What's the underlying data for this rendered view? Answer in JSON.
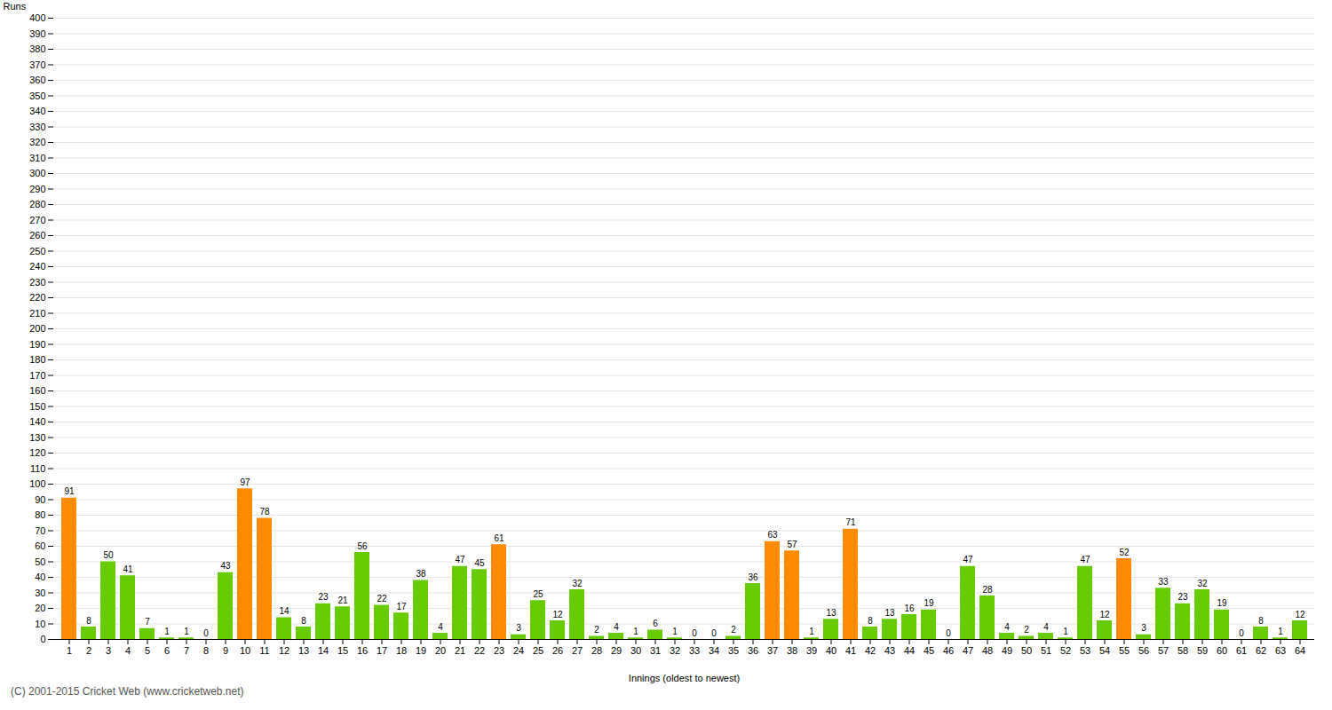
{
  "chart_data": {
    "type": "bar",
    "xlabel": "Innings (oldest to newest)",
    "ylabel": "Runs",
    "categories": [
      1,
      2,
      3,
      4,
      5,
      6,
      7,
      8,
      9,
      10,
      11,
      12,
      13,
      14,
      15,
      16,
      17,
      18,
      19,
      20,
      21,
      22,
      23,
      24,
      25,
      26,
      27,
      28,
      29,
      30,
      31,
      32,
      33,
      34,
      35,
      36,
      37,
      38,
      39,
      40,
      41,
      42,
      43,
      44,
      45,
      46,
      47,
      48,
      49,
      50,
      51,
      52,
      53,
      54,
      55,
      56,
      57,
      58,
      59,
      60,
      61,
      62,
      63,
      64
    ],
    "values": [
      91,
      8,
      50,
      41,
      7,
      1,
      1,
      0,
      43,
      97,
      78,
      14,
      8,
      23,
      21,
      56,
      22,
      17,
      38,
      4,
      47,
      45,
      61,
      3,
      25,
      12,
      32,
      2,
      4,
      1,
      6,
      1,
      0,
      0,
      2,
      36,
      63,
      57,
      1,
      13,
      71,
      8,
      13,
      16,
      19,
      0,
      47,
      28,
      4,
      2,
      4,
      1,
      47,
      12,
      52,
      3,
      33,
      23,
      32,
      19,
      0,
      8,
      1,
      12
    ],
    "colors": [
      "#ff8c00",
      "#66cc00",
      "#66cc00",
      "#66cc00",
      "#66cc00",
      "#66cc00",
      "#66cc00",
      "#66cc00",
      "#66cc00",
      "#ff8c00",
      "#ff8c00",
      "#66cc00",
      "#66cc00",
      "#66cc00",
      "#66cc00",
      "#66cc00",
      "#66cc00",
      "#66cc00",
      "#66cc00",
      "#66cc00",
      "#66cc00",
      "#66cc00",
      "#ff8c00",
      "#66cc00",
      "#66cc00",
      "#66cc00",
      "#66cc00",
      "#66cc00",
      "#66cc00",
      "#66cc00",
      "#66cc00",
      "#66cc00",
      "#66cc00",
      "#66cc00",
      "#66cc00",
      "#66cc00",
      "#ff8c00",
      "#ff8c00",
      "#66cc00",
      "#66cc00",
      "#ff8c00",
      "#66cc00",
      "#66cc00",
      "#66cc00",
      "#66cc00",
      "#66cc00",
      "#66cc00",
      "#66cc00",
      "#66cc00",
      "#66cc00",
      "#66cc00",
      "#66cc00",
      "#66cc00",
      "#66cc00",
      "#ff8c00",
      "#66cc00",
      "#66cc00",
      "#66cc00",
      "#66cc00",
      "#66cc00",
      "#66cc00",
      "#66cc00",
      "#66cc00",
      "#66cc00"
    ],
    "ylim": [
      0,
      400
    ],
    "yticks": [
      0,
      10,
      20,
      30,
      40,
      50,
      60,
      70,
      80,
      90,
      100,
      110,
      120,
      130,
      140,
      150,
      160,
      170,
      180,
      190,
      200,
      210,
      220,
      230,
      240,
      250,
      260,
      270,
      280,
      290,
      300,
      310,
      320,
      330,
      340,
      350,
      360,
      370,
      380,
      390,
      400
    ],
    "grid": true,
    "data_labels": true,
    "annotations": [
      "(C) 2001-2015 Cricket Web (www.cricketweb.net)"
    ]
  }
}
